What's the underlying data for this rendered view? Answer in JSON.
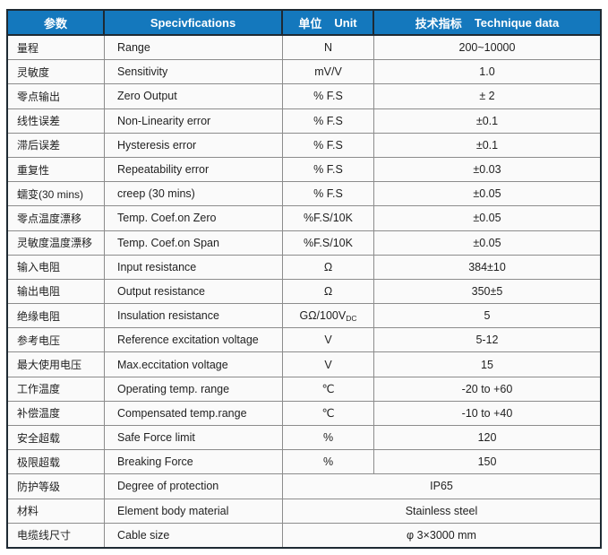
{
  "header": {
    "param": "参数",
    "spec": "Specivfications",
    "unit_zh": "单位",
    "unit_en": "Unit",
    "data_zh": "技术指标",
    "data_en": "Technique data"
  },
  "rows": [
    {
      "param": "量程",
      "spec": "Range",
      "unit": "N",
      "value": "200~10000"
    },
    {
      "param": "灵敏度",
      "spec": "Sensitivity",
      "unit": "mV/V",
      "value": "1.0"
    },
    {
      "param": "零点输出",
      "spec": "Zero Output",
      "unit": "% F.S",
      "value": "± 2"
    },
    {
      "param": "线性误差",
      "spec": "Non-Linearity error",
      "unit": "% F.S",
      "value": "±0.1"
    },
    {
      "param": "滞后误差",
      "spec": "Hysteresis error",
      "unit": "% F.S",
      "value": "±0.1"
    },
    {
      "param": "重复性",
      "spec": "Repeatability error",
      "unit": "% F.S",
      "value": "±0.03"
    },
    {
      "param": "蠕变(30 mins)",
      "spec": "creep (30 mins)",
      "unit": "% F.S",
      "value": "±0.05"
    },
    {
      "param": "零点温度漂移",
      "spec": "Temp. Coef.on Zero",
      "unit": "%F.S/10K",
      "value": "±0.05"
    },
    {
      "param": "灵敏度温度漂移",
      "spec": "Temp. Coef.on Span",
      "unit": "%F.S/10K",
      "value": "±0.05"
    },
    {
      "param": "输入电阻",
      "spec": "Input resistance",
      "unit": "Ω",
      "value": "384±10"
    },
    {
      "param": "输出电阻",
      "spec": "Output resistance",
      "unit": "Ω",
      "value": "350±5"
    },
    {
      "param": "绝缘电阻",
      "spec": "Insulation resistance",
      "unit": "GΩ/100V",
      "unit_sub": "DC",
      "value": "5"
    },
    {
      "param": "参考电压",
      "spec": "Reference excitation voltage",
      "unit": "V",
      "value": "5-12"
    },
    {
      "param": "最大使用电压",
      "spec": "Max.eccitation voltage",
      "unit": "V",
      "value": "15"
    },
    {
      "param": "工作温度",
      "spec": "Operating temp. range",
      "unit": "℃",
      "value": "-20 to +60"
    },
    {
      "param": "补偿温度",
      "spec": "Compensated temp.range",
      "unit": "℃",
      "value": "-10 to +40"
    },
    {
      "param": "安全超载",
      "spec": "Safe Force limit",
      "unit": "%",
      "value": "120"
    },
    {
      "param": "极限超载",
      "spec": "Breaking Force",
      "unit": "%",
      "value": "150"
    },
    {
      "param": "防护等级",
      "spec": "Degree of protection",
      "merged": true,
      "value": "IP65"
    },
    {
      "param": "材料",
      "spec": "Element body material",
      "merged": true,
      "value": "Stainless steel"
    },
    {
      "param": "电缆线尺寸",
      "spec": "Cable size",
      "merged": true,
      "value": "φ 3×3000 mm"
    }
  ],
  "colors": {
    "header_bg": "#1478bd",
    "header_text": "#ffffff",
    "outer_border": "#1e2a33",
    "grid_line": "#8c8c8c",
    "body_bg": "#fafafa",
    "text": "#1f1f1f"
  }
}
